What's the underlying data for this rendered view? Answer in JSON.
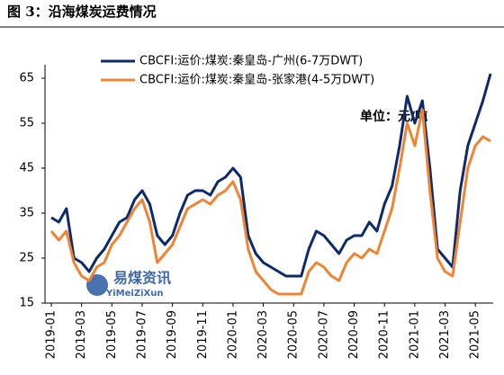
{
  "page_title": "图 3：沿海煤炭运费情况",
  "chart_data": {
    "type": "line",
    "categories": [
      "2019-01",
      null,
      null,
      null,
      "2019-03",
      null,
      null,
      null,
      "2019-05",
      null,
      null,
      null,
      "2019-07",
      null,
      null,
      null,
      "2019-09",
      null,
      null,
      null,
      "2019-11",
      null,
      null,
      null,
      "2020-01",
      null,
      null,
      null,
      "2020-03",
      null,
      null,
      null,
      "2020-05",
      null,
      null,
      null,
      "2020-07",
      null,
      null,
      null,
      "2020-09",
      null,
      null,
      null,
      "2020-11",
      null,
      null,
      null,
      "2021-01",
      null,
      null,
      null,
      "2021-03",
      null,
      null,
      null,
      "2021-05",
      null,
      null
    ],
    "series": [
      {
        "name": "CBCFI:运价:煤炭:秦皇岛-广州(6-7万DWT)",
        "color": "#0d2a6b",
        "values": [
          34,
          33,
          36,
          25,
          24,
          22,
          25,
          27,
          30,
          33,
          34,
          38,
          40,
          37,
          30,
          28,
          30,
          35,
          39,
          40,
          40,
          39,
          42,
          43,
          45,
          43,
          30,
          26,
          24,
          23,
          22,
          21,
          21,
          21,
          27,
          31,
          30,
          28,
          26,
          29,
          30,
          30,
          33,
          31,
          37,
          41,
          50,
          61,
          55,
          60,
          45,
          27,
          25,
          23,
          40,
          50,
          55,
          60,
          66
        ]
      },
      {
        "name": "CBCFI:运价:煤炭:秦皇岛-张家港(4-5万DWT)",
        "color": "#ee8434",
        "values": [
          31,
          29,
          31,
          24,
          21,
          20,
          23,
          24,
          28,
          30,
          33,
          36,
          38,
          33,
          24,
          26,
          28,
          32,
          36,
          37,
          38,
          37,
          39,
          40,
          42,
          38,
          27,
          22,
          20,
          18,
          17,
          17,
          17,
          17,
          22,
          24,
          23,
          21,
          20,
          24,
          26,
          25,
          27,
          26,
          31,
          36,
          45,
          55,
          50,
          58,
          40,
          25,
          22,
          21,
          33,
          45,
          50,
          52,
          51
        ]
      }
    ],
    "ylim": [
      15,
      67
    ],
    "yticks": [
      15,
      25,
      35,
      45,
      55,
      65
    ],
    "annotation": "单位：元/吨",
    "watermark": "易煤资讯",
    "watermark_sub": "YiMeiZiXun"
  }
}
